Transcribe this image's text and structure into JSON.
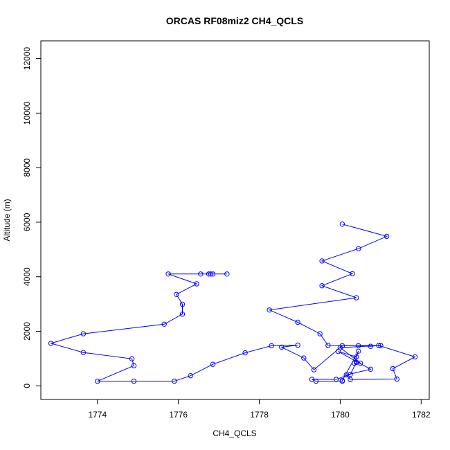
{
  "chart_data": {
    "type": "line",
    "title": "ORCAS RF08miz2 CH4_QCLS",
    "xlabel": "CH4_QCLS",
    "ylabel": "Altitude (m)",
    "xlim": [
      1772.6,
      1782.2
    ],
    "ylim": [
      -500,
      12650
    ],
    "xticks": [
      1774,
      1776,
      1778,
      1780,
      1782
    ],
    "yticks": [
      0,
      2000,
      4000,
      6000,
      8000,
      10000,
      12000
    ],
    "series": [
      {
        "color": "#0000ff",
        "marker": "open-circle",
        "points": [
          [
            1780.05,
            5930
          ],
          [
            1781.15,
            5480
          ],
          [
            1780.45,
            5030
          ],
          [
            1779.55,
            4580
          ],
          [
            1780.3,
            4110
          ],
          [
            1779.55,
            3670
          ],
          [
            1780.4,
            3230
          ],
          [
            1778.25,
            2780
          ],
          [
            1778.95,
            2330
          ],
          [
            1779.5,
            1910
          ],
          [
            1779.7,
            1480
          ],
          [
            1780.45,
            1470
          ],
          [
            1780.75,
            1450
          ],
          [
            1780.95,
            1480
          ],
          [
            1781.85,
            1060
          ],
          [
            1781.3,
            630
          ],
          [
            1781.4,
            250
          ],
          [
            1780.25,
            230
          ],
          [
            1780.15,
            400
          ],
          [
            1780.75,
            610
          ],
          [
            1779.95,
            1260
          ],
          [
            1780.4,
            1060
          ],
          [
            1780.4,
            860
          ],
          [
            1780.25,
            420
          ],
          [
            1779.9,
            240
          ],
          [
            1779.3,
            240
          ],
          [
            1779.4,
            170
          ],
          [
            1780.05,
            170
          ],
          [
            1780.05,
            190
          ],
          [
            1780.45,
            1270
          ],
          [
            1780.35,
            830
          ],
          [
            1780.5,
            830
          ],
          [
            1780.0,
            1400
          ],
          [
            1781.0,
            1480
          ],
          [
            1780.05,
            1470
          ],
          [
            1779.35,
            590
          ],
          [
            1779.1,
            1020
          ],
          [
            1778.55,
            1420
          ],
          [
            1778.95,
            1490
          ],
          [
            1778.3,
            1470
          ],
          [
            1777.65,
            1210
          ],
          [
            1776.85,
            790
          ],
          [
            1776.3,
            370
          ],
          [
            1775.9,
            170
          ],
          [
            1774.9,
            170
          ],
          [
            1774.0,
            170
          ],
          [
            1774.9,
            740
          ],
          [
            1774.85,
            990
          ],
          [
            1773.65,
            1220
          ],
          [
            1772.85,
            1560
          ],
          [
            1773.65,
            1910
          ],
          [
            1775.65,
            2260
          ],
          [
            1776.1,
            2630
          ],
          [
            1776.1,
            2990
          ],
          [
            1775.95,
            3350
          ],
          [
            1776.45,
            3740
          ],
          [
            1775.75,
            4100
          ],
          [
            1776.55,
            4100
          ],
          [
            1776.75,
            4100
          ],
          [
            1776.8,
            4100
          ],
          [
            1776.85,
            4100
          ],
          [
            1777.2,
            4100
          ]
        ]
      }
    ]
  }
}
